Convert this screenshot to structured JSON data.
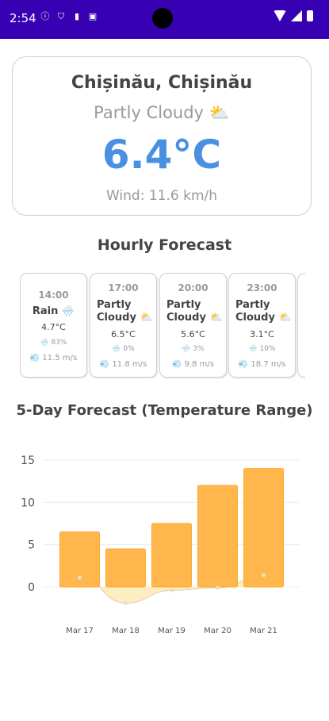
{
  "status_bar": {
    "time": "2:54",
    "left_icons": [
      "info-icon",
      "shield-icon",
      "sd-card-icon",
      "image-icon"
    ],
    "right_icons": [
      "wifi-icon",
      "signal-icon",
      "battery-icon"
    ]
  },
  "current": {
    "location": "Chișinău, Chișinău",
    "condition": "Partly Cloudy ⛅",
    "temperature": "6.4°C",
    "wind": "Wind: 11.6 km/h"
  },
  "hourly_title": "Hourly Forecast",
  "hourly": [
    {
      "time": "14:00",
      "condition": "Rain 🌧️",
      "temp": "4.7°C",
      "precip": "🌧️ 83%",
      "wind": "💨 11.5 m/s"
    },
    {
      "time": "17:00",
      "condition": "Partly Cloudy ⛅",
      "temp": "6.5°C",
      "precip": "🌧️ 0%",
      "wind": "💨 11.8 m/s"
    },
    {
      "time": "20:00",
      "condition": "Partly Cloudy ⛅",
      "temp": "5.6°C",
      "precip": "🌧️ 3%",
      "wind": "💨 9.8 m/s"
    },
    {
      "time": "23:00",
      "condition": "Partly Cloudy ⛅",
      "temp": "3.1°C",
      "precip": "🌧️ 10%",
      "wind": "💨 18.7 m/s"
    }
  ],
  "forecast_title": "5-Day Forecast (Temperature Range)",
  "colors": {
    "accent": "#4a90e2",
    "statusbar": "#3700b3",
    "bar_fill": "#ffb74d",
    "bar_stroke": "#ffa726",
    "area_fill": "#ffe9b3"
  },
  "chart_data": {
    "type": "bar",
    "categories": [
      "Mar 17",
      "Mar 18",
      "Mar 19",
      "Mar 20",
      "Mar 21"
    ],
    "series": [
      {
        "values": [
          6.5,
          4.5,
          7.5,
          12,
          14
        ]
      },
      {
        "type": "area",
        "values": [
          1.1,
          -1.9,
          -0.4,
          -0.1,
          1.4
        ]
      }
    ],
    "yticks": [
      0,
      5,
      10,
      15
    ],
    "ylim": [
      -2.5,
      15
    ],
    "grid": true,
    "title": "",
    "xlabel": "",
    "ylabel": ""
  }
}
